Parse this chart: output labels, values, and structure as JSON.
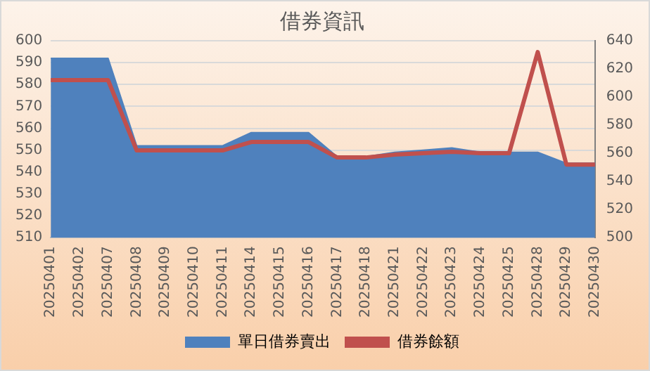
{
  "chart_data": {
    "type": "area",
    "title": "借券資訊",
    "categories": [
      "20250401",
      "20250402",
      "20250407",
      "20250408",
      "20250409",
      "20250410",
      "20250411",
      "20250414",
      "20250415",
      "20250416",
      "20250417",
      "20250418",
      "20250421",
      "20250422",
      "20250423",
      "20250424",
      "20250425",
      "20250428",
      "20250429",
      "20250430"
    ],
    "series": [
      {
        "name": "單日借券賣出",
        "color": "#4f81bd",
        "values": [
          592,
          592,
          592,
          552,
          552,
          552,
          552,
          558,
          558,
          558,
          547,
          547,
          549,
          550,
          551,
          549,
          549,
          549,
          544,
          544
        ]
      },
      {
        "name": "借券餘額",
        "type": "line",
        "axis": "y2",
        "color": "#c0504d",
        "values": [
          612,
          612,
          612,
          562,
          562,
          562,
          562,
          568,
          568,
          568,
          557,
          557,
          559,
          560,
          561,
          560,
          560,
          632,
          552,
          552
        ]
      }
    ],
    "ylim": [
      510,
      600
    ],
    "yticks": [
      510,
      520,
      530,
      540,
      550,
      560,
      570,
      580,
      590,
      600
    ],
    "y2lim": [
      500,
      640
    ],
    "y2ticks": [
      500,
      520,
      540,
      560,
      580,
      600,
      620,
      640
    ],
    "grid": "y",
    "legend": "bottom",
    "marker": "none",
    "line_style": "solid"
  }
}
